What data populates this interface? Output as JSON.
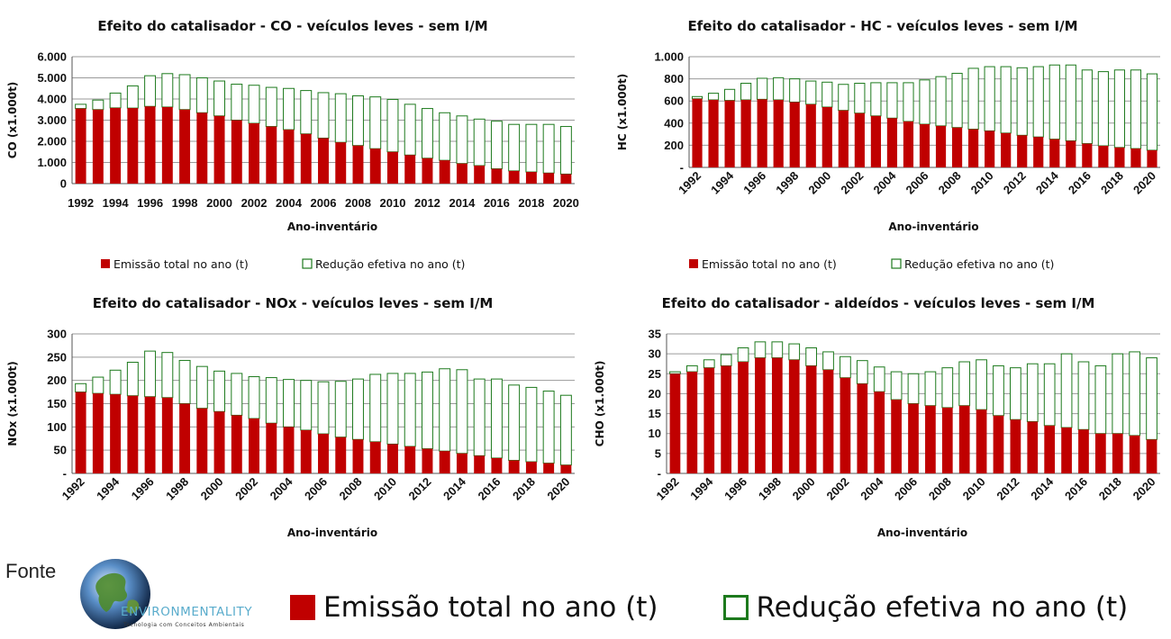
{
  "colors": {
    "emission": "#c00000",
    "reduction_border": "#1d7a1d",
    "reduction_fill": "#ffffff",
    "grid": "#9a9a9a"
  },
  "chart_data": [
    {
      "type": "bar",
      "stacked": true,
      "title": "Efeito do catalisador - CO - veículos leves - sem I/M",
      "xlabel": "Ano-inventário",
      "ylabel": "CO (x1.000t)",
      "ylim": [
        0,
        6000
      ],
      "yticks": [
        "0",
        "1.000",
        "2.000",
        "3.000",
        "4.000",
        "5.000",
        "6.000"
      ],
      "x": [
        1992,
        1993,
        1994,
        1995,
        1996,
        1997,
        1998,
        1999,
        2000,
        2001,
        2002,
        2003,
        2004,
        2005,
        2006,
        2007,
        2008,
        2009,
        2010,
        2011,
        2012,
        2013,
        2014,
        2015,
        2016,
        2017,
        2018,
        2019,
        2020
      ],
      "xticks": [
        "1992",
        "1994",
        "1996",
        "1998",
        "2000",
        "2002",
        "2004",
        "2006",
        "2008",
        "2010",
        "2012",
        "2014",
        "2016",
        "2018",
        "2020"
      ],
      "xtick_rotate": false,
      "legend": "bottom",
      "series": [
        {
          "name": "Emissão total no ano (t)",
          "values": [
            3550,
            3500,
            3580,
            3570,
            3650,
            3620,
            3500,
            3350,
            3200,
            3000,
            2850,
            2700,
            2550,
            2350,
            2150,
            1950,
            1800,
            1650,
            1500,
            1350,
            1200,
            1100,
            950,
            850,
            700,
            600,
            550,
            500,
            450
          ]
        },
        {
          "name": "Redução efetiva no ano (t)",
          "values": [
            200,
            450,
            700,
            1050,
            1450,
            1580,
            1650,
            1650,
            1650,
            1700,
            1800,
            1850,
            1950,
            2050,
            2150,
            2300,
            2350,
            2450,
            2480,
            2400,
            2350,
            2250,
            2250,
            2200,
            2250,
            2200,
            2250,
            2300,
            2250
          ]
        }
      ]
    },
    {
      "type": "bar",
      "stacked": true,
      "title": "Efeito do catalisador - HC - veículos leves - sem I/M",
      "xlabel": "Ano-inventário",
      "ylabel": "HC (x1.000t)",
      "ylim": [
        0,
        1000
      ],
      "yticks": [
        "-",
        "200",
        "400",
        "600",
        "800",
        "1.000"
      ],
      "x": [
        1992,
        1993,
        1994,
        1995,
        1996,
        1997,
        1998,
        1999,
        2000,
        2001,
        2002,
        2003,
        2004,
        2005,
        2006,
        2007,
        2008,
        2009,
        2010,
        2011,
        2012,
        2013,
        2014,
        2015,
        2016,
        2017,
        2018,
        2019,
        2020
      ],
      "xticks": [
        "1992",
        "1994",
        "1996",
        "1998",
        "2000",
        "2002",
        "2004",
        "2006",
        "2008",
        "2010",
        "2012",
        "2014",
        "2016",
        "2018",
        "2020"
      ],
      "xtick_rotate": true,
      "legend": "bottom",
      "series": [
        {
          "name": "Emissão total no ano (t)",
          "values": [
            620,
            610,
            605,
            610,
            615,
            610,
            590,
            570,
            545,
            515,
            490,
            465,
            445,
            415,
            390,
            375,
            360,
            345,
            330,
            310,
            290,
            275,
            255,
            240,
            215,
            195,
            180,
            170,
            155
          ]
        },
        {
          "name": "Redução efetiva no ano (t)",
          "values": [
            20,
            60,
            100,
            150,
            190,
            200,
            210,
            210,
            225,
            235,
            270,
            300,
            320,
            350,
            400,
            445,
            490,
            550,
            580,
            600,
            610,
            635,
            670,
            685,
            665,
            670,
            700,
            710,
            690
          ]
        }
      ]
    },
    {
      "type": "bar",
      "stacked": true,
      "title": "Efeito do catalisador - NOx - veículos leves - sem I/M",
      "xlabel": "Ano-inventário",
      "ylabel": "NOx (x1.000t)",
      "ylim": [
        0,
        300
      ],
      "yticks": [
        "-",
        "50",
        "100",
        "150",
        "200",
        "250",
        "300"
      ],
      "x": [
        1992,
        1993,
        1994,
        1995,
        1996,
        1997,
        1998,
        1999,
        2000,
        2001,
        2002,
        2003,
        2004,
        2005,
        2006,
        2007,
        2008,
        2009,
        2010,
        2011,
        2012,
        2013,
        2014,
        2015,
        2016,
        2017,
        2018,
        2019,
        2020
      ],
      "xticks": [
        "1992",
        "1994",
        "1996",
        "1998",
        "2000",
        "2002",
        "2004",
        "2006",
        "2008",
        "2010",
        "2012",
        "2014",
        "2016",
        "2018",
        "2020"
      ],
      "xtick_rotate": true,
      "legend": "none",
      "series": [
        {
          "name": "Emissão total no ano (t)",
          "values": [
            175,
            172,
            170,
            167,
            165,
            163,
            150,
            140,
            133,
            125,
            118,
            108,
            100,
            93,
            85,
            78,
            73,
            68,
            63,
            58,
            53,
            48,
            43,
            38,
            33,
            28,
            25,
            22,
            18
          ]
        },
        {
          "name": "Redução efetiva no ano (t)",
          "values": [
            18,
            35,
            52,
            72,
            98,
            97,
            93,
            90,
            87,
            90,
            90,
            98,
            102,
            107,
            112,
            120,
            130,
            145,
            152,
            157,
            165,
            177,
            180,
            165,
            170,
            162,
            160,
            155,
            150
          ]
        }
      ]
    },
    {
      "type": "bar",
      "stacked": true,
      "title": "Efeito do catalisador - aldeídos - veículos leves - sem I/M",
      "xlabel": "Ano-inventário",
      "ylabel": "CHO (x1.000t)",
      "ylim": [
        0,
        35
      ],
      "yticks": [
        "-",
        "5",
        "10",
        "15",
        "20",
        "25",
        "30",
        "35"
      ],
      "x": [
        1992,
        1993,
        1994,
        1995,
        1996,
        1997,
        1998,
        1999,
        2000,
        2001,
        2002,
        2003,
        2004,
        2005,
        2006,
        2007,
        2008,
        2009,
        2010,
        2011,
        2012,
        2013,
        2014,
        2015,
        2016,
        2017,
        2018,
        2019,
        2020
      ],
      "xticks": [
        "1992",
        "1994",
        "1996",
        "1998",
        "2000",
        "2002",
        "2004",
        "2006",
        "2008",
        "2010",
        "2012",
        "2014",
        "2016",
        "2018",
        "2020"
      ],
      "xtick_rotate": true,
      "legend": "none",
      "series": [
        {
          "name": "Emissão total no ano (t)",
          "values": [
            25,
            25.5,
            26.5,
            27,
            28,
            29,
            29,
            28.5,
            27,
            26,
            24,
            22.5,
            20.5,
            18.5,
            17.5,
            17,
            16.5,
            17,
            16,
            14.5,
            13.5,
            13,
            12,
            11.5,
            11,
            10,
            10,
            9.5,
            8.5
          ]
        },
        {
          "name": "Redução efetiva no ano (t)",
          "values": [
            0.5,
            1.5,
            2,
            2.8,
            3.5,
            4,
            4,
            4,
            4.5,
            4.5,
            5.3,
            5.8,
            6.2,
            7,
            7.5,
            8.5,
            10,
            11,
            12.5,
            12.5,
            13,
            14.5,
            15.5,
            18.5,
            17,
            17,
            20,
            21,
            20.5
          ]
        }
      ]
    }
  ],
  "footer": {
    "fonte_label": "Fonte",
    "logo_name": "ENVIRONMENTALITY",
    "logo_tagline": "Tecnologia com Conceitos Ambientais",
    "legend_emission": "Emissão total no ano (t)",
    "legend_reduction": "Redução efetiva no ano (t)"
  }
}
